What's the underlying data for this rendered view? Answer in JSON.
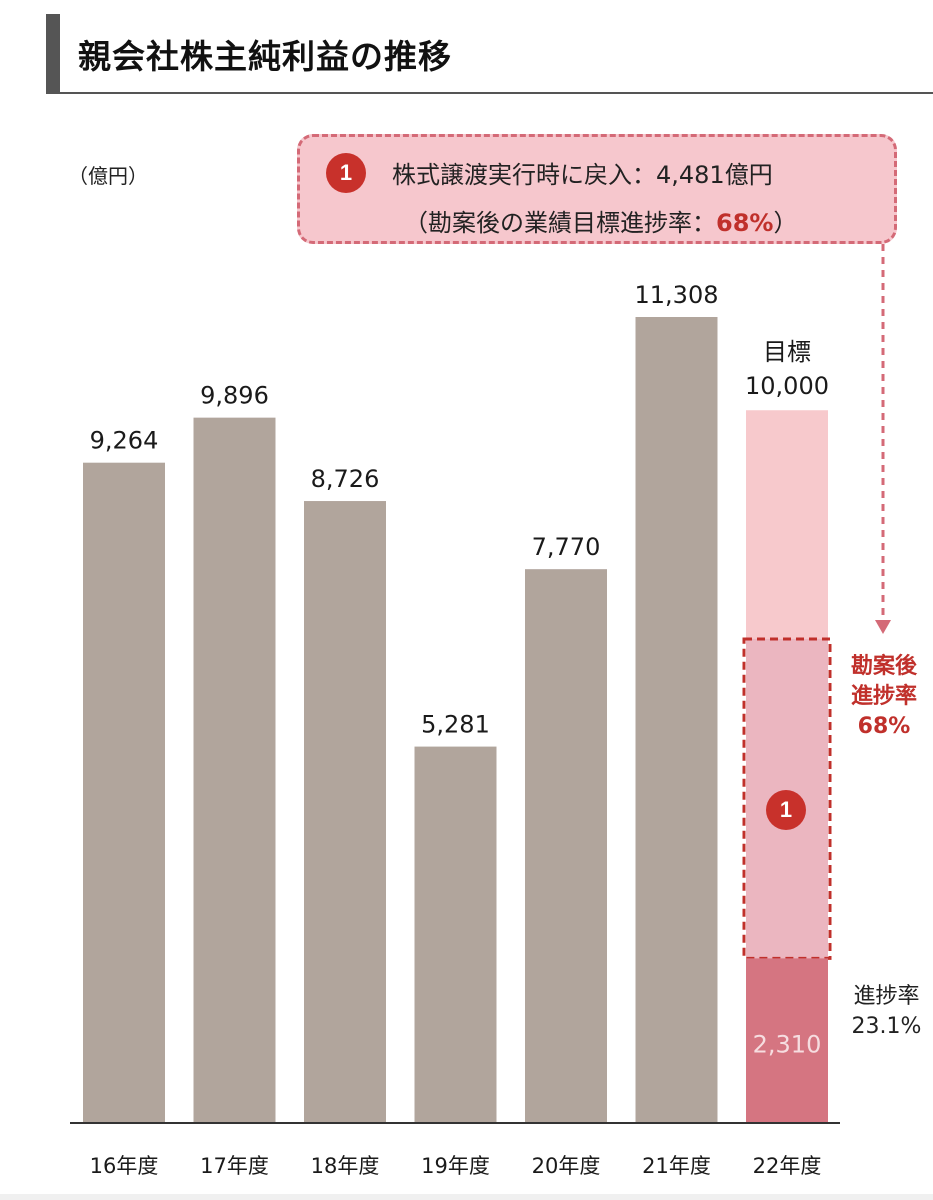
{
  "header": {
    "title": "親会社株主純利益の推移"
  },
  "unit_label": "（億円）",
  "callout": {
    "badge": "1",
    "line1": "株式譲渡実行時に戻入：4,481億円",
    "line2_prefix": "（勘案後の業績目標進捗率：",
    "line2_pct": "68%",
    "line2_suffix": "）"
  },
  "adjusted_label": {
    "line1": "勘案後",
    "line2": "進捗率",
    "line3": "68%"
  },
  "progress_label": {
    "line1": "進捗率",
    "line2": "23.1%"
  },
  "bar_badge": "1",
  "colors": {
    "actual_bar": "#b1a59c",
    "target_bar": "#f7c9cc",
    "adjusted_segment": "#ebb6c0",
    "progress_segment": "#d57581",
    "accent": "#c0302b",
    "callout_border": "#d46a77"
  },
  "chart_data": {
    "type": "bar",
    "categories": [
      "16年度",
      "17年度",
      "18年度",
      "19年度",
      "20年度",
      "21年度",
      "22年度"
    ],
    "values": [
      9264,
      9896,
      8726,
      5281,
      7770,
      11308,
      2310
    ],
    "value_labels": [
      "9,264",
      "9,896",
      "8,726",
      "5,281",
      "7,770",
      "11,308",
      "2,310"
    ],
    "target": {
      "category": "22年度",
      "label_line1": "目標",
      "value": 10000,
      "value_label": "10,000"
    },
    "adjusted": {
      "category": "22年度",
      "value": 6791,
      "added": 4481,
      "progress_pct": 68
    },
    "progress_pct": 23.1,
    "ylabel": "（億円）",
    "ylim": [
      0,
      11308
    ]
  }
}
